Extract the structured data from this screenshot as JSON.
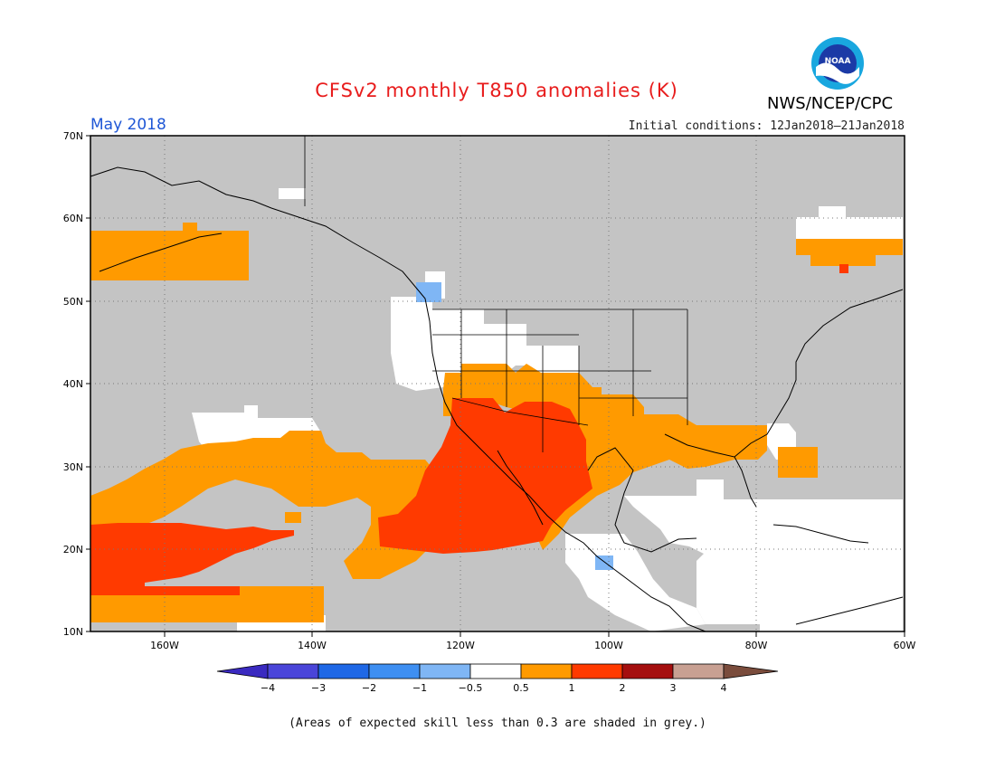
{
  "header": {
    "title": "CFSv2 monthly T850 anomalies (K)",
    "month": "May 2018",
    "initial_conditions": "Initial conditions: 12Jan2018–21Jan2018",
    "agency": "NWS/NCEP/CPC",
    "logo_text": "NOAA"
  },
  "map": {
    "region": "North Pacific / North America",
    "lon_range": [
      -170,
      -60
    ],
    "lat_range": [
      10,
      70
    ],
    "lat_labels": [
      "70N",
      "60N",
      "50N",
      "40N",
      "30N",
      "20N",
      "10N"
    ],
    "lon_labels": [
      "160W",
      "140W",
      "120W",
      "100W",
      "80W",
      "60W"
    ],
    "colors": {
      "grey_low_skill": "#c4c4c4",
      "neutral": "#ffffff",
      "warm_0_5_to_1": "#ff9a00",
      "warm_1_to_2": "#ff3a00",
      "cool_minus1_to_minus0_5": "#7fb6f5"
    }
  },
  "colorbar": {
    "labels": [
      "−4",
      "−3",
      "−2",
      "−1",
      "−0.5",
      "0.5",
      "1",
      "2",
      "3",
      "4"
    ],
    "colors": [
      "#3a2ac0",
      "#4a45d9",
      "#1f68e6",
      "#3e8ff2",
      "#7fb6f5",
      "#ffffff",
      "#ff9a00",
      "#ff3a00",
      "#a50f0f",
      "#c8a092",
      "#7a4c3c"
    ]
  },
  "footnote": "(Areas of expected skill less than 0.3 are shaded in grey.)"
}
